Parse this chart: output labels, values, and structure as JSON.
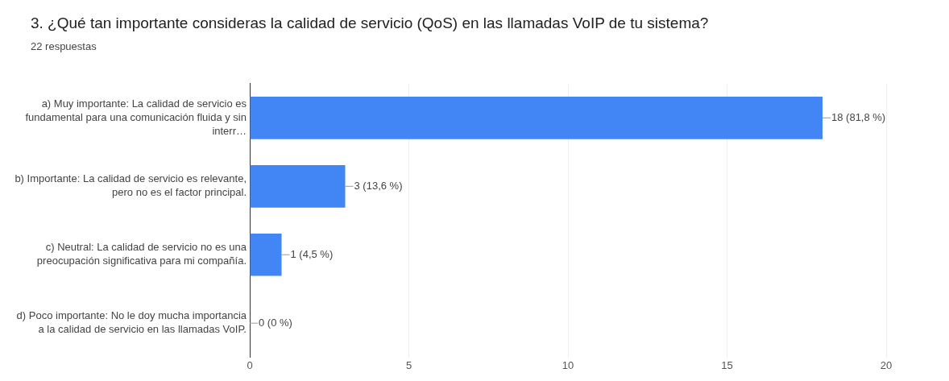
{
  "chart_data": {
    "type": "bar",
    "orientation": "horizontal",
    "title": "3. ¿Qué tan importante consideras la calidad de servicio (QoS) en las llamadas VoIP de tu sistema?",
    "subtitle": "22 respuestas",
    "categories": [
      "a) Muy importante: La calidad de servicio es fundamental para una comunicación fluida y sin interr…",
      "b) Importante: La calidad de servicio es relevante, pero no es el factor principal.",
      "c) Neutral: La calidad de servicio no es una preocupación significativa para mi compañía.",
      "d) Poco importante: No le doy mucha importancia a la calidad de servicio en las llamadas VoIP."
    ],
    "values": [
      18,
      3,
      1,
      0
    ],
    "value_labels": [
      "18 (81,8 %)",
      "3 (13,6 %)",
      "1 (4,5 %)",
      "0 (0 %)"
    ],
    "color": "#4285f4",
    "xlim": [
      0,
      20
    ],
    "xticks": [
      0,
      5,
      10,
      15,
      20
    ],
    "grid": "x",
    "legend": false
  }
}
